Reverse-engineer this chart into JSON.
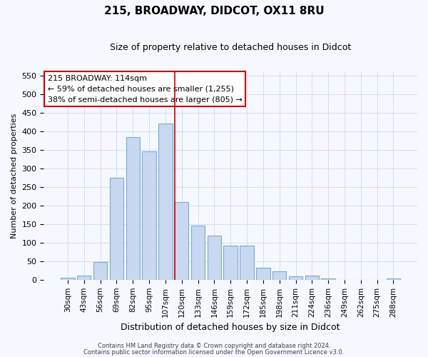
{
  "title": "215, BROADWAY, DIDCOT, OX11 8RU",
  "subtitle": "Size of property relative to detached houses in Didcot",
  "xlabel": "Distribution of detached houses by size in Didcot",
  "ylabel": "Number of detached properties",
  "categories": [
    "30sqm",
    "43sqm",
    "56sqm",
    "69sqm",
    "82sqm",
    "95sqm",
    "107sqm",
    "120sqm",
    "133sqm",
    "146sqm",
    "159sqm",
    "172sqm",
    "185sqm",
    "198sqm",
    "211sqm",
    "224sqm",
    "236sqm",
    "249sqm",
    "262sqm",
    "275sqm",
    "288sqm"
  ],
  "values": [
    5,
    12,
    48,
    275,
    385,
    345,
    420,
    210,
    145,
    118,
    92,
    92,
    32,
    22,
    10,
    12,
    3,
    0,
    0,
    0,
    3
  ],
  "bar_color": "#c8d8f0",
  "bar_edge_color": "#7aabcf",
  "background_color": "#f5f8ff",
  "grid_color": "#d0d8e8",
  "vline_x": 7.0,
  "vline_color": "#cc0000",
  "annotation_line1": "215 BROADWAY: 114sqm",
  "annotation_line2": "← 59% of detached houses are smaller (1,255)",
  "annotation_line3": "38% of semi-detached houses are larger (805) →",
  "annotation_box_color": "#ffffff",
  "annotation_box_edge": "#cc0000",
  "footer1": "Contains HM Land Registry data © Crown copyright and database right 2024.",
  "footer2": "Contains public sector information licensed under the Open Government Licence v3.0.",
  "ylim": [
    0,
    560
  ],
  "yticks": [
    0,
    50,
    100,
    150,
    200,
    250,
    300,
    350,
    400,
    450,
    500,
    550
  ]
}
